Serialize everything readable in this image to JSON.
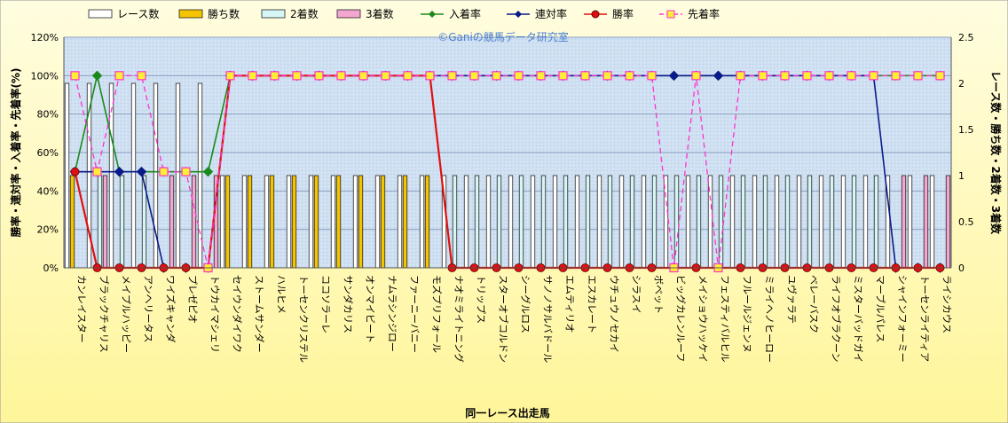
{
  "chart_data": {
    "type": "bar",
    "title": "",
    "watermark": "©Ganiの競馬データ研究室",
    "xlabel": "同一レース出走馬",
    "ylabel_left": "勝率・連対率・入着率・先着率(%)",
    "ylabel_right": "レース数・勝ち数・2着数・3着数",
    "ylim_left": [
      0,
      120
    ],
    "ylim_right": [
      0,
      2.5
    ],
    "yticks_left": [
      "0%",
      "20%",
      "40%",
      "60%",
      "80%",
      "100%",
      "120%"
    ],
    "yticks_right": [
      "0",
      "0.5",
      "1",
      "1.5",
      "2",
      "2.5"
    ],
    "legend_position": "top",
    "categories": [
      "カンレイスター",
      "ブラックチャリス",
      "メイプルハッピー",
      "アンヘリータス",
      "ワイズキャンダ",
      "プレゼピオ",
      "トウカイマシェリ",
      "セイウンダイワク",
      "ストームサンダー",
      "ハルヒメ",
      "トーセンクリステル",
      "ココソラーレ",
      "サンダカリス",
      "オンマイビート",
      "ナムラシンジロー",
      "ファーニーバニー",
      "モズプリフォール",
      "ナオミライトニング",
      "トリップス",
      "スターオブコルドン",
      "シーグルロス",
      "サノノサルバドール",
      "エムティリオ",
      "エスカレート",
      "ウチュウノセカイ",
      "シラスイ",
      "ボベット",
      "ビッグカレンルーフ",
      "メイショウハッケイ",
      "フェスティバルヒル",
      "フルールジェンヌ",
      "ミライヘノヒーロー",
      "ユヴァラテ",
      "ベレーバスク",
      "ライフオブラクーン",
      "ミスターバッドガイ",
      "マーブルパレス",
      "シャインフォーミー",
      "トーセンライティア",
      "ライシカウス"
    ],
    "series": [
      {
        "name": "レース数",
        "kind": "bar",
        "axis": "right",
        "color": "#ffffff",
        "values": [
          2,
          2,
          2,
          2,
          2,
          2,
          2,
          1,
          1,
          1,
          1,
          1,
          1,
          1,
          1,
          1,
          1,
          1,
          1,
          1,
          1,
          1,
          1,
          1,
          1,
          1,
          1,
          1,
          1,
          1,
          1,
          1,
          1,
          1,
          1,
          1,
          1,
          1,
          1,
          1
        ]
      },
      {
        "name": "勝ち数",
        "kind": "bar",
        "axis": "right",
        "color": "#f5c400",
        "values": [
          1,
          0,
          0,
          0,
          0,
          0,
          0,
          1,
          1,
          1,
          1,
          1,
          1,
          1,
          1,
          1,
          1,
          0,
          0,
          0,
          0,
          0,
          0,
          0,
          0,
          0,
          0,
          0,
          0,
          0,
          0,
          0,
          0,
          0,
          0,
          0,
          0,
          0,
          0,
          0
        ]
      },
      {
        "name": "2着数",
        "kind": "bar",
        "axis": "right",
        "color": "#d6f5f5",
        "values": [
          0,
          1,
          1,
          1,
          0,
          0,
          0,
          0,
          0,
          0,
          0,
          0,
          0,
          0,
          0,
          0,
          0,
          1,
          1,
          1,
          1,
          1,
          1,
          1,
          1,
          1,
          1,
          1,
          1,
          1,
          1,
          1,
          1,
          1,
          1,
          1,
          1,
          0,
          0,
          0
        ]
      },
      {
        "name": "3着数",
        "kind": "bar",
        "axis": "right",
        "color": "#f3a6cf",
        "values": [
          0,
          1,
          0,
          0,
          1,
          1,
          1,
          0,
          0,
          0,
          0,
          0,
          0,
          0,
          0,
          0,
          0,
          0,
          0,
          0,
          0,
          0,
          0,
          0,
          0,
          0,
          0,
          0,
          0,
          0,
          0,
          0,
          0,
          0,
          0,
          0,
          0,
          1,
          1,
          1
        ]
      },
      {
        "name": "入着率",
        "kind": "line",
        "axis": "left",
        "color": "#1a8a1a",
        "marker": "diamond",
        "values": [
          50,
          100,
          50,
          50,
          50,
          50,
          50,
          100,
          100,
          100,
          100,
          100,
          100,
          100,
          100,
          100,
          100,
          100,
          100,
          100,
          100,
          100,
          100,
          100,
          100,
          100,
          100,
          100,
          100,
          100,
          100,
          100,
          100,
          100,
          100,
          100,
          100,
          100,
          100,
          100
        ]
      },
      {
        "name": "連対率",
        "kind": "line",
        "axis": "left",
        "color": "#0a1a8a",
        "marker": "diamond",
        "values": [
          50,
          50,
          50,
          50,
          0,
          0,
          0,
          100,
          100,
          100,
          100,
          100,
          100,
          100,
          100,
          100,
          100,
          100,
          100,
          100,
          100,
          100,
          100,
          100,
          100,
          100,
          100,
          100,
          100,
          100,
          100,
          100,
          100,
          100,
          100,
          100,
          100,
          0,
          0,
          0
        ]
      },
      {
        "name": "勝率",
        "kind": "line",
        "axis": "left",
        "color": "#e01010",
        "marker": "circle",
        "values": [
          50,
          0,
          0,
          0,
          0,
          0,
          0,
          100,
          100,
          100,
          100,
          100,
          100,
          100,
          100,
          100,
          100,
          0,
          0,
          0,
          0,
          0,
          0,
          0,
          0,
          0,
          0,
          0,
          0,
          0,
          0,
          0,
          0,
          0,
          0,
          0,
          0,
          0,
          0,
          0
        ]
      },
      {
        "name": "先着率",
        "kind": "line",
        "axis": "left",
        "color": "#ff33cc",
        "marker": "square",
        "dashed": true,
        "values": [
          100,
          50,
          100,
          100,
          50,
          50,
          0,
          100,
          100,
          100,
          100,
          100,
          100,
          100,
          100,
          100,
          100,
          100,
          100,
          100,
          100,
          100,
          100,
          100,
          100,
          100,
          100,
          0,
          100,
          0,
          100,
          100,
          100,
          100,
          100,
          100,
          100,
          100,
          100,
          100
        ]
      }
    ]
  }
}
